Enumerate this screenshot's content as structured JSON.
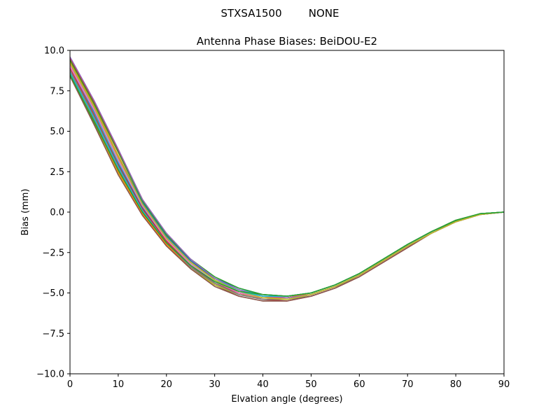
{
  "figure": {
    "suptitle": "STXSA1500        NONE"
  },
  "chart_data": {
    "type": "line",
    "title": "Antenna Phase Biases: BeiDOU-E2",
    "xlabel": "Elvation angle (degrees)",
    "ylabel": "Bias (mm)",
    "xlim": [
      0,
      90
    ],
    "ylim": [
      -10,
      10
    ],
    "xticks": [
      0,
      10,
      20,
      30,
      40,
      50,
      60,
      70,
      80,
      90
    ],
    "yticks": [
      -10.0,
      -7.5,
      -5.0,
      -2.5,
      0.0,
      2.5,
      5.0,
      7.5,
      10.0
    ],
    "ytick_labels": [
      "−10.0",
      "−7.5",
      "−5.0",
      "−2.5",
      "0.0",
      "2.5",
      "5.0",
      "7.5",
      "10.0"
    ],
    "xtick_labels": [
      "0",
      "10",
      "20",
      "30",
      "40",
      "50",
      "60",
      "70",
      "80",
      "90"
    ],
    "grid": false,
    "x": [
      0,
      5,
      10,
      15,
      20,
      25,
      30,
      35,
      40,
      45,
      50,
      55,
      60,
      65,
      70,
      75,
      80,
      85,
      90
    ],
    "series": [
      {
        "color": "#1f77b4",
        "values": [
          9.0,
          6.2,
          3.0,
          0.3,
          -1.7,
          -3.2,
          -4.3,
          -4.9,
          -5.2,
          -5.3,
          -5.1,
          -4.6,
          -3.9,
          -3.0,
          -2.1,
          -1.3,
          -0.6,
          -0.15,
          0.0
        ]
      },
      {
        "color": "#ff7f0e",
        "values": [
          9.3,
          6.6,
          3.5,
          0.6,
          -1.5,
          -3.0,
          -4.1,
          -4.8,
          -5.2,
          -5.3,
          -5.1,
          -4.6,
          -3.9,
          -3.0,
          -2.1,
          -1.3,
          -0.6,
          -0.15,
          0.0
        ]
      },
      {
        "color": "#2ca02c",
        "values": [
          8.4,
          5.5,
          2.5,
          -0.1,
          -2.0,
          -3.4,
          -4.4,
          -5.0,
          -5.3,
          -5.3,
          -5.0,
          -4.5,
          -3.8,
          -2.9,
          -2.0,
          -1.2,
          -0.55,
          -0.1,
          0.0
        ]
      },
      {
        "color": "#d62728",
        "values": [
          9.5,
          6.8,
          3.8,
          0.8,
          -1.4,
          -3.0,
          -4.2,
          -5.0,
          -5.4,
          -5.5,
          -5.2,
          -4.7,
          -4.0,
          -3.1,
          -2.2,
          -1.3,
          -0.6,
          -0.15,
          0.0
        ]
      },
      {
        "color": "#9467bd",
        "values": [
          8.9,
          6.0,
          2.9,
          0.2,
          -1.8,
          -3.3,
          -4.4,
          -5.1,
          -5.4,
          -5.4,
          -5.2,
          -4.7,
          -3.9,
          -3.0,
          -2.1,
          -1.3,
          -0.6,
          -0.15,
          0.0
        ]
      },
      {
        "color": "#8c564b",
        "values": [
          8.6,
          5.7,
          2.6,
          0.0,
          -2.0,
          -3.5,
          -4.5,
          -5.2,
          -5.5,
          -5.5,
          -5.2,
          -4.7,
          -4.0,
          -3.1,
          -2.2,
          -1.3,
          -0.6,
          -0.15,
          0.0
        ]
      },
      {
        "color": "#e377c2",
        "values": [
          9.1,
          6.4,
          3.3,
          0.5,
          -1.6,
          -3.1,
          -4.2,
          -4.9,
          -5.3,
          -5.4,
          -5.1,
          -4.6,
          -3.9,
          -3.0,
          -2.1,
          -1.3,
          -0.6,
          -0.15,
          0.0
        ]
      },
      {
        "color": "#7f7f7f",
        "values": [
          8.7,
          5.8,
          2.7,
          0.0,
          -1.9,
          -3.4,
          -4.5,
          -5.1,
          -5.4,
          -5.4,
          -5.2,
          -4.7,
          -3.9,
          -3.0,
          -2.1,
          -1.3,
          -0.6,
          -0.15,
          0.0
        ]
      },
      {
        "color": "#bcbd22",
        "values": [
          8.5,
          5.6,
          2.4,
          -0.1,
          -2.1,
          -3.5,
          -4.5,
          -5.1,
          -5.3,
          -5.3,
          -5.0,
          -4.5,
          -3.8,
          -2.9,
          -2.0,
          -1.2,
          -0.5,
          -0.1,
          0.0
        ]
      },
      {
        "color": "#17becf",
        "values": [
          8.8,
          6.1,
          3.1,
          0.4,
          -1.6,
          -3.1,
          -4.2,
          -4.8,
          -5.1,
          -5.2,
          -5.0,
          -4.5,
          -3.8,
          -2.9,
          -2.0,
          -1.2,
          -0.55,
          -0.1,
          0.0
        ]
      },
      {
        "color": "#1f77b4",
        "values": [
          9.2,
          6.5,
          3.4,
          0.6,
          -1.5,
          -3.0,
          -4.1,
          -4.7,
          -5.1,
          -5.2,
          -5.0,
          -4.5,
          -3.8,
          -2.9,
          -2.0,
          -1.2,
          -0.55,
          -0.1,
          0.0
        ]
      },
      {
        "color": "#ff7f0e",
        "values": [
          8.6,
          5.6,
          2.5,
          -0.1,
          -2.0,
          -3.4,
          -4.4,
          -5.0,
          -5.3,
          -5.3,
          -5.0,
          -4.5,
          -3.8,
          -2.9,
          -2.0,
          -1.2,
          -0.5,
          -0.1,
          0.0
        ]
      },
      {
        "color": "#2ca02c",
        "values": [
          9.4,
          6.7,
          3.7,
          0.7,
          -1.4,
          -2.9,
          -4.0,
          -4.7,
          -5.1,
          -5.2,
          -5.0,
          -4.5,
          -3.8,
          -2.9,
          -2.0,
          -1.2,
          -0.55,
          -0.1,
          0.0
        ]
      },
      {
        "color": "#d62728",
        "values": [
          8.9,
          6.0,
          2.9,
          0.2,
          -1.8,
          -3.3,
          -4.4,
          -5.0,
          -5.3,
          -5.4,
          -5.1,
          -4.6,
          -3.9,
          -3.0,
          -2.1,
          -1.3,
          -0.6,
          -0.15,
          0.0
        ]
      },
      {
        "color": "#9467bd",
        "values": [
          9.6,
          6.9,
          3.9,
          0.8,
          -1.3,
          -2.9,
          -4.1,
          -4.8,
          -5.2,
          -5.3,
          -5.1,
          -4.6,
          -3.9,
          -3.0,
          -2.1,
          -1.3,
          -0.6,
          -0.15,
          0.0
        ]
      },
      {
        "color": "#8c564b",
        "values": [
          8.4,
          5.4,
          2.3,
          -0.2,
          -2.1,
          -3.5,
          -4.6,
          -5.2,
          -5.5,
          -5.5,
          -5.2,
          -4.7,
          -4.0,
          -3.1,
          -2.2,
          -1.3,
          -0.6,
          -0.15,
          0.0
        ]
      },
      {
        "color": "#e377c2",
        "values": [
          9.0,
          6.3,
          3.2,
          0.4,
          -1.7,
          -3.2,
          -4.3,
          -5.0,
          -5.3,
          -5.4,
          -5.1,
          -4.6,
          -3.9,
          -3.0,
          -2.1,
          -1.3,
          -0.6,
          -0.15,
          0.0
        ]
      },
      {
        "color": "#7f7f7f",
        "values": [
          8.8,
          5.9,
          2.8,
          0.1,
          -1.9,
          -3.4,
          -4.4,
          -5.1,
          -5.4,
          -5.4,
          -5.1,
          -4.6,
          -3.9,
          -3.0,
          -2.1,
          -1.3,
          -0.6,
          -0.15,
          0.0
        ]
      },
      {
        "color": "#bcbd22",
        "values": [
          9.2,
          6.5,
          3.4,
          0.5,
          -1.6,
          -3.1,
          -4.2,
          -4.9,
          -5.3,
          -5.4,
          -5.1,
          -4.6,
          -3.9,
          -3.0,
          -2.1,
          -1.3,
          -0.6,
          -0.15,
          0.0
        ]
      },
      {
        "color": "#17becf",
        "values": [
          8.6,
          5.8,
          2.8,
          0.1,
          -1.9,
          -3.3,
          -4.3,
          -4.9,
          -5.2,
          -5.2,
          -5.0,
          -4.5,
          -3.8,
          -2.9,
          -2.0,
          -1.2,
          -0.5,
          -0.1,
          0.0
        ]
      },
      {
        "color": "#2ca02c",
        "values": [
          8.5,
          5.6,
          2.6,
          0.0,
          -1.9,
          -3.3,
          -4.3,
          -4.9,
          -5.1,
          -5.2,
          -5.0,
          -4.5,
          -3.8,
          -2.9,
          -2.0,
          -1.2,
          -0.5,
          -0.1,
          0.0
        ]
      }
    ]
  }
}
